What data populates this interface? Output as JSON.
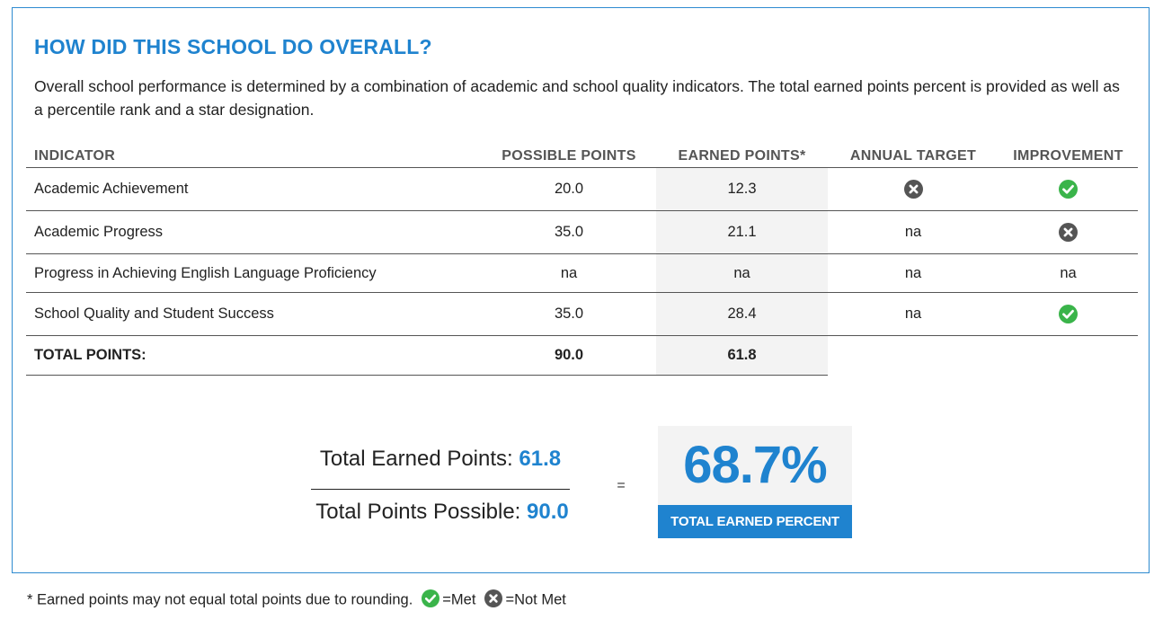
{
  "section": {
    "title": "HOW DID THIS SCHOOL DO OVERALL?",
    "description": "Overall school performance is determined by a combination of academic and school quality indicators. The total earned points percent is provided as well as a percentile rank and a star designation."
  },
  "table": {
    "headers": {
      "indicator": "INDICATOR",
      "possible": "POSSIBLE POINTS",
      "earned": "EARNED POINTS*",
      "target": "ANNUAL TARGET",
      "improvement": "IMPROVEMENT"
    },
    "rows": [
      {
        "indicator": "Academic Achievement",
        "possible": "20.0",
        "earned": "12.3",
        "target_icon": "x-circle-icon",
        "improvement_icon": "check-circle-icon"
      },
      {
        "indicator": "Academic Progress",
        "possible": "35.0",
        "earned": "21.1",
        "target": "na",
        "improvement_icon": "x-circle-icon"
      },
      {
        "indicator": "Progress in Achieving English Language Proficiency",
        "possible": "na",
        "earned": "na",
        "target": "na",
        "improvement": "na"
      },
      {
        "indicator": "School Quality and Student Success",
        "possible": "35.0",
        "earned": "28.4",
        "target": "na",
        "improvement_icon": "check-circle-icon"
      }
    ],
    "total": {
      "label": "TOTAL POINTS:",
      "possible": "90.0",
      "earned": "61.8"
    }
  },
  "summary": {
    "earned_label": "Total Earned Points:",
    "earned_value": "61.8",
    "possible_label": "Total Points Possible:",
    "possible_value": "90.0",
    "equals": "=",
    "percent": "68.7%",
    "percent_label": "TOTAL EARNED PERCENT"
  },
  "footnote": {
    "text": "* Earned points may not equal total points due to rounding.",
    "met_label": "=Met",
    "not_met_label": "=Not Met"
  },
  "colors": {
    "accent": "#1f83cf",
    "met": "#3ab44a",
    "not_met": "#555555"
  }
}
